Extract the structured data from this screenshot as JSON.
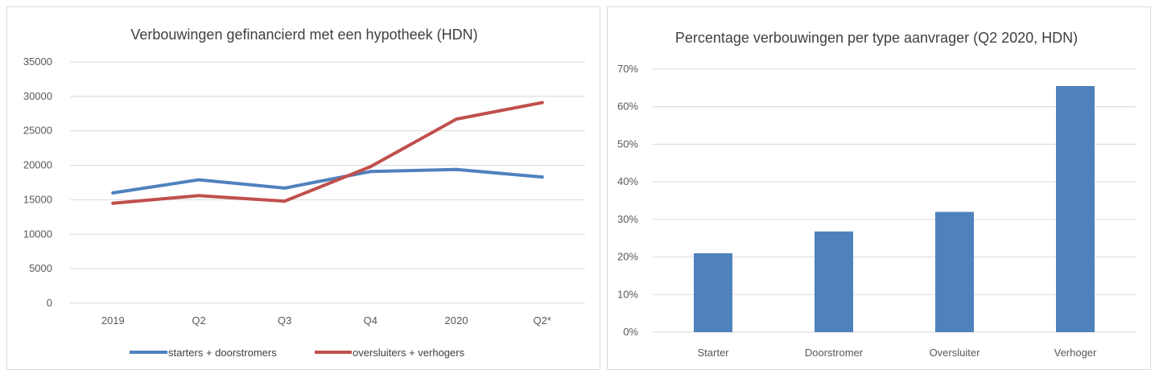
{
  "chart_data": [
    {
      "type": "line",
      "title": "Verbouwingen gefinancierd met een hypotheek (HDN)",
      "categories": [
        "2019",
        "Q2",
        "Q3",
        "Q4",
        "2020",
        "Q2*"
      ],
      "ylim": [
        0,
        35000
      ],
      "yticks": [
        "0",
        "5000",
        "10000",
        "15000",
        "20000",
        "25000",
        "30000",
        "35000"
      ],
      "grid": true,
      "legend_position": "bottom",
      "series": [
        {
          "name": "starters + doorstromers",
          "color": "#4f81bd",
          "values": [
            16000,
            17900,
            16700,
            19100,
            19400,
            18300
          ]
        },
        {
          "name": "oversluiters + verhogers",
          "color": "#c0504d",
          "values": [
            14500,
            15600,
            14800,
            19800,
            26700,
            29100
          ]
        }
      ]
    },
    {
      "type": "bar",
      "title": "Percentage verbouwingen per type aanvrager (Q2 2020, HDN)",
      "categories": [
        "Starter",
        "Doorstromer",
        "Oversluiter",
        "Verhoger"
      ],
      "values": [
        21,
        26.8,
        32,
        65.5
      ],
      "ylim": [
        0,
        70
      ],
      "yticks": [
        "0%",
        "10%",
        "20%",
        "30%",
        "40%",
        "50%",
        "60%",
        "70%"
      ],
      "grid": true,
      "color": "#4f81bd"
    }
  ]
}
